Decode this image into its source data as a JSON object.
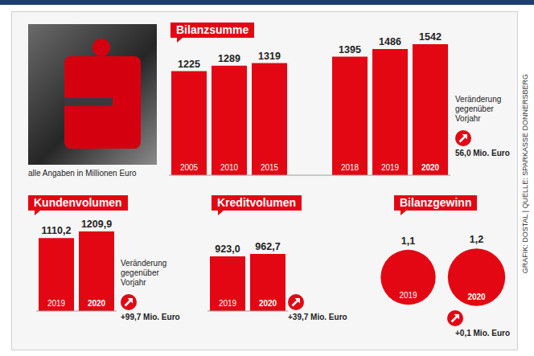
{
  "note": "alle Angaben in Millionen Euro",
  "source": "GRAFIK: DOSTAL | QUELLE: SPARKASSE DONNERSBERG",
  "chart_data": [
    {
      "type": "bar",
      "title": "Bilanzsumme",
      "categories": [
        "2005",
        "2010",
        "2015",
        null,
        "2018",
        "2019",
        "2020"
      ],
      "values": [
        1225,
        1289,
        1319,
        null,
        1395,
        1486,
        1542
      ],
      "color": "#e30613",
      "data_labels": true,
      "annotations": [
        "Veränderung gegenüber Vorjahr",
        "56,0 Mio. Euro"
      ]
    },
    {
      "type": "bar",
      "title": "Kundenvolumen",
      "categories": [
        "2019",
        "2020"
      ],
      "values": [
        1110.2,
        1209.9
      ],
      "value_labels": [
        "1110,2",
        "1209,9"
      ],
      "color": "#e30613",
      "data_labels": true,
      "annotations": [
        "Veränderung gegenüber Vorjahr",
        "+99,7 Mio. Euro"
      ]
    },
    {
      "type": "bar",
      "title": "Kreditvolumen",
      "categories": [
        "2019",
        "2020"
      ],
      "values": [
        923.0,
        962.7
      ],
      "value_labels": [
        "923,0",
        "962,7"
      ],
      "color": "#e30613",
      "data_labels": true,
      "annotations": [
        "+39,7 Mio. Euro"
      ]
    },
    {
      "type": "bubble",
      "title": "Bilanzgewinn",
      "categories": [
        "2019",
        "2020"
      ],
      "values": [
        1.1,
        1.2
      ],
      "value_labels": [
        "1,1",
        "1,2"
      ],
      "color": "#e30613",
      "data_labels": true,
      "annotations": [
        "+0,1 Mio. Euro"
      ]
    }
  ]
}
